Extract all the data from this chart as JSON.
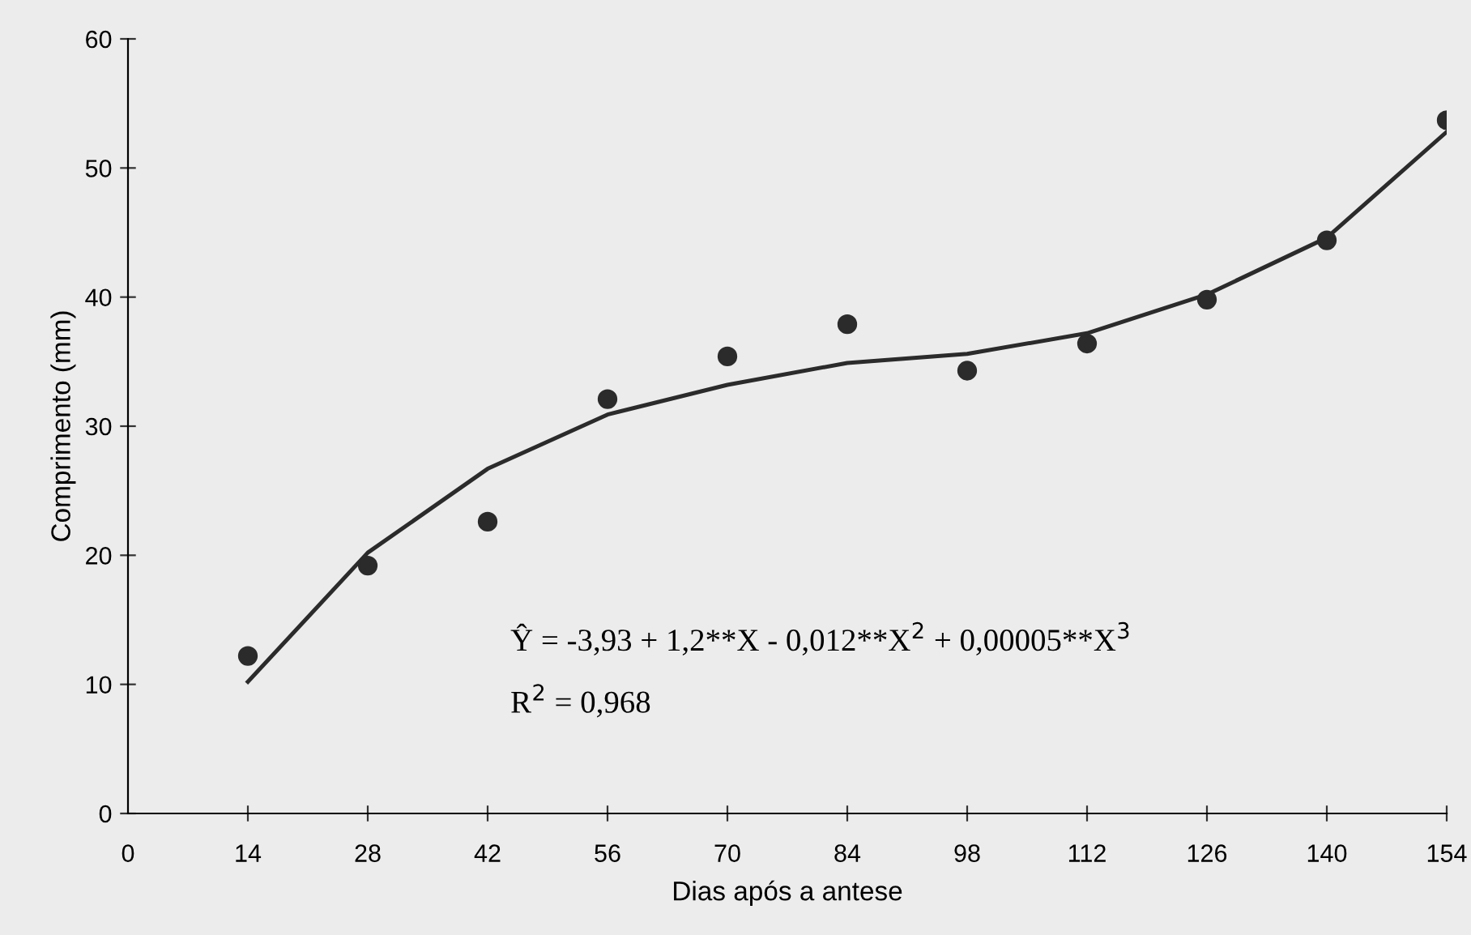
{
  "chart_data": {
    "type": "scatter",
    "xlabel": "Dias após a antese",
    "ylabel": "Comprimento (mm)",
    "xlim": [
      0,
      154
    ],
    "xticks": [
      0,
      14,
      28,
      42,
      56,
      70,
      84,
      98,
      112,
      126,
      140,
      154
    ],
    "ylim": [
      0,
      60
    ],
    "yticks": [
      0,
      10,
      20,
      30,
      40,
      50,
      60
    ],
    "series": [
      {
        "color": "#2b2b2b",
        "marker": "circle",
        "x": [
          14,
          28,
          42,
          56,
          70,
          84,
          98,
          112,
          126,
          140,
          154
        ],
        "values": [
          12.2,
          19.2,
          22.6,
          32.1,
          35.4,
          37.9,
          34.3,
          36.4,
          39.8,
          44.4,
          53.7
        ]
      },
      {
        "type": "line",
        "color": "#2b2b2b",
        "marker": "none",
        "x": [
          14,
          28,
          42,
          56,
          70,
          84,
          98,
          112,
          126,
          140,
          154
        ],
        "values": [
          10.2,
          20.2,
          26.7,
          30.9,
          33.2,
          34.9,
          35.6,
          37.2,
          40.2,
          44.6,
          52.8
        ]
      }
    ],
    "annotations": [
      "Ŷ = -3,93 + 1,2**X - 0,012**X$^{2}$ + 0,00005**X$^{3}$",
      "R$^{2}$ = 0,968"
    ],
    "grid": false,
    "legend": false
  }
}
